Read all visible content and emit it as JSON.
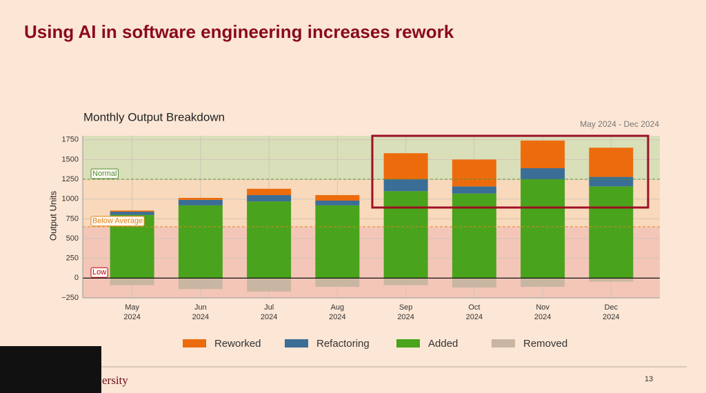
{
  "slide_title": "Using AI in software engineering increases rework",
  "footer_text": "ersity",
  "page_number": "13",
  "chart_data": {
    "type": "stacked_bar",
    "title": "Monthly Output Breakdown",
    "subtitle": "May 2024 - Dec 2024",
    "y_label": "Output Units",
    "categories": [
      "May 2024",
      "Jun 2024",
      "Jul 2024",
      "Aug 2024",
      "Sep 2024",
      "Oct 2024",
      "Nov 2024",
      "Dec 2024"
    ],
    "series": [
      {
        "name": "Reworked",
        "color": "#ec6c0d",
        "values": [
          15,
          25,
          80,
          70,
          330,
          340,
          350,
          370
        ]
      },
      {
        "name": "Refactoring",
        "color": "#3b6e96",
        "values": [
          40,
          70,
          80,
          60,
          150,
          90,
          140,
          120
        ]
      },
      {
        "name": "Added",
        "color": "#4aa31c",
        "values": [
          800,
          920,
          970,
          920,
          1100,
          1070,
          1250,
          1160
        ]
      },
      {
        "name": "Removed",
        "color": "#c9b6a2",
        "values": [
          -90,
          -140,
          -170,
          -110,
          -90,
          -120,
          -110,
          -45
        ]
      }
    ],
    "ylim": [
      -250,
      1800
    ],
    "yticks": [
      {
        "value": -250,
        "label": "−250"
      },
      0,
      250,
      500,
      750,
      1000,
      1250,
      1500,
      1750
    ],
    "grid": true,
    "reference_lines": [
      {
        "label": "Low",
        "value": 0,
        "color": "#c0001a",
        "band_color": "#f3c6b8"
      },
      {
        "label": "Below Average",
        "value": 650,
        "color": "#e0861c",
        "band_color": "#f9d9bb"
      },
      {
        "label": "Normal",
        "value": 1250,
        "color": "#4f8f35",
        "band_color": "#d9dfb9"
      }
    ],
    "legend": "bottom"
  }
}
